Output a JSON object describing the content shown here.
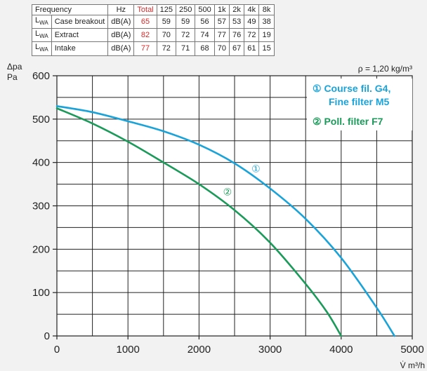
{
  "table": {
    "header": [
      "Frequency",
      "",
      "Hz",
      "Total",
      "125",
      "250",
      "500",
      "1k",
      "2k",
      "4k",
      "8k"
    ],
    "rows": [
      {
        "sym": "LWA",
        "name": "Case breakout",
        "unit": "dB(A)",
        "total": "65",
        "bands": [
          "59",
          "59",
          "56",
          "57",
          "53",
          "49",
          "38"
        ]
      },
      {
        "sym": "LWA",
        "name": "Extract",
        "unit": "dB(A)",
        "total": "82",
        "bands": [
          "70",
          "72",
          "74",
          "77",
          "76",
          "72",
          "19"
        ]
      },
      {
        "sym": "LWA",
        "name": "Intake",
        "unit": "dB(A)",
        "total": "77",
        "bands": [
          "72",
          "71",
          "68",
          "70",
          "67",
          "61",
          "15"
        ]
      }
    ]
  },
  "chart_data": {
    "type": "line",
    "ylabel_top": "Δpa",
    "ylabel_unit": "Pa",
    "xlabel": "V̇ m³/h",
    "density_note": "ρ = 1,20 kg/m³",
    "xlim": [
      0,
      5000
    ],
    "ylim": [
      0,
      600
    ],
    "xticks": [
      "0",
      "1000",
      "2000",
      "3000",
      "4000",
      "5000"
    ],
    "yticks": [
      "0",
      "100",
      "200",
      "300",
      "400",
      "500",
      "600"
    ],
    "grid": true,
    "series": [
      {
        "marker": "①",
        "legend": [
          "① Course fil. G4,",
          "Fine filter M5"
        ],
        "color": "#1aa3d9",
        "x": [
          0,
          500,
          1000,
          1500,
          2000,
          2500,
          3000,
          3500,
          4000,
          4500,
          4750
        ],
        "y": [
          530,
          516,
          495,
          472,
          441,
          398,
          340,
          270,
          180,
          65,
          0
        ]
      },
      {
        "marker": "②",
        "legend": [
          "② Poll. filter F7"
        ],
        "color": "#1b9a5a",
        "x": [
          0,
          500,
          1000,
          1500,
          2000,
          2500,
          3000,
          3500,
          3800,
          4000
        ],
        "y": [
          525,
          490,
          448,
          400,
          350,
          290,
          215,
          120,
          55,
          0
        ]
      }
    ]
  }
}
